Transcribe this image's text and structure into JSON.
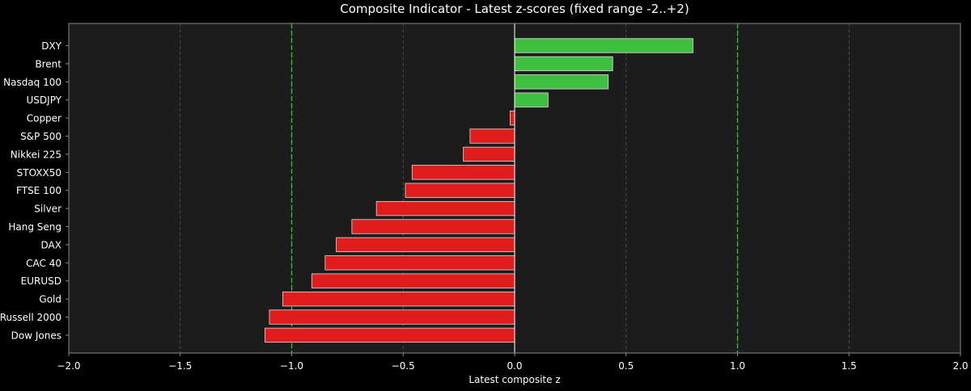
{
  "chart_data": {
    "type": "bar",
    "orientation": "horizontal",
    "title": "Composite Indicator - Latest z-scores (fixed range -2..+2)",
    "xlabel": "Latest composite z",
    "ylabel": "",
    "xlim": [
      -2.0,
      2.0
    ],
    "xticks": [
      -2.0,
      -1.5,
      -1.0,
      -0.5,
      0.0,
      0.5,
      1.0,
      1.5,
      2.0
    ],
    "xtick_labels": [
      "−2.0",
      "−1.5",
      "−1.0",
      "−0.5",
      "0.0",
      "0.5",
      "1.0",
      "1.5",
      "2.0"
    ],
    "grid": "vertical dashed",
    "reference_lines": [
      -1.0,
      1.0
    ],
    "categories": [
      "DXY",
      "Brent",
      "Nasdaq 100",
      "USDJPY",
      "Copper",
      "S&P 500",
      "Nikkei 225",
      "STOXX50",
      "FTSE 100",
      "Silver",
      "Hang Seng",
      "DAX",
      "CAC 40",
      "EURUSD",
      "Gold",
      "Russell 2000",
      "Dow Jones"
    ],
    "values": [
      0.8,
      0.44,
      0.42,
      0.15,
      -0.02,
      -0.2,
      -0.23,
      -0.46,
      -0.49,
      -0.62,
      -0.73,
      -0.8,
      -0.85,
      -0.91,
      -1.04,
      -1.1,
      -1.12
    ]
  },
  "colors": {
    "background": "#000000",
    "plot_background": "#1c1c1c",
    "positive": "#3fbf3f",
    "negative": "#e01c1c",
    "bar_edge": "#dddddd",
    "reference_line": "#2ecc2e",
    "grid": "#555555",
    "text": "#ffffff",
    "axis": "#888888",
    "zero_line": "#ffffff"
  }
}
